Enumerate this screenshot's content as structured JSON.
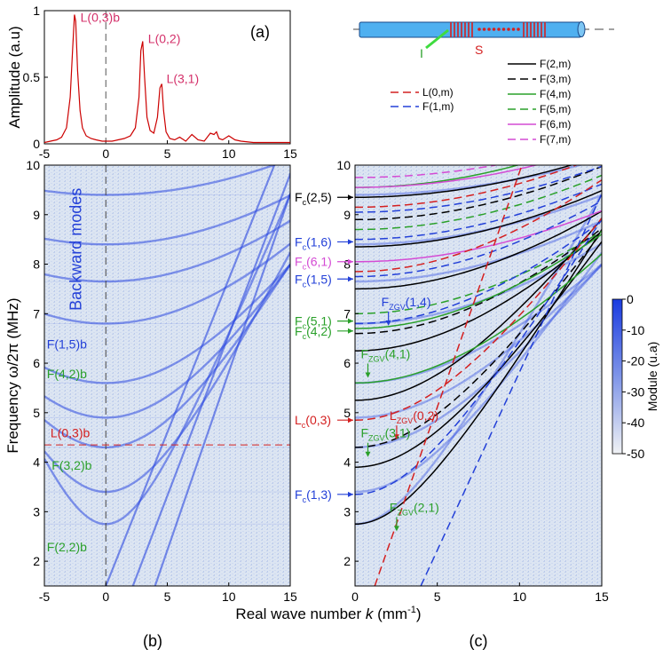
{
  "colors": {
    "red": "#d42020",
    "blue": "#2340d8",
    "green": "#2aa02a",
    "magenta": "#d44bd4",
    "black": "#000000",
    "cyan": "#4fb0f0",
    "peak": "#cc0000",
    "spectrum_bg": "#dde6f2",
    "spectrum_mode": "#2b48e0"
  },
  "chart_data": [
    {
      "panel": "a",
      "type": "line",
      "panel_letter": "(a)",
      "xlabel": "",
      "ylabel": "Amplitude (a.u)",
      "xlim": [
        -5,
        15
      ],
      "ylim": [
        0,
        1
      ],
      "xticks": [
        -5,
        0,
        5,
        10,
        15
      ],
      "yticks": [
        0,
        0.5,
        1
      ],
      "ytick_labels": [
        "0",
        "0.5",
        "1"
      ],
      "vline_x": 0,
      "series": [
        {
          "x": [
            -5,
            -4.5,
            -4,
            -3.6,
            -3.2,
            -2.9,
            -2.7,
            -2.55,
            -2.45,
            -2.3,
            -2.1,
            -1.9,
            -1.6,
            -1.2,
            -0.8,
            -0.3,
            0,
            0.5,
            1,
            1.5,
            2,
            2.4,
            2.7,
            2.85,
            3.0,
            3.15,
            3.35,
            3.6,
            3.9,
            4.2,
            4.4,
            4.55,
            4.7,
            4.9,
            5.2,
            5.6,
            6.0,
            6.5,
            7.0,
            7.5,
            8.0,
            8.5,
            8.8,
            9.0,
            9.2,
            9.5,
            10.0,
            10.5,
            11,
            12,
            13,
            14,
            15
          ],
          "y": [
            0.01,
            0.02,
            0.03,
            0.05,
            0.12,
            0.35,
            0.72,
            0.97,
            0.92,
            0.55,
            0.25,
            0.12,
            0.06,
            0.04,
            0.03,
            0.02,
            0.02,
            0.02,
            0.03,
            0.04,
            0.06,
            0.12,
            0.35,
            0.7,
            0.77,
            0.5,
            0.2,
            0.1,
            0.08,
            0.2,
            0.42,
            0.45,
            0.25,
            0.09,
            0.04,
            0.03,
            0.05,
            0.02,
            0.07,
            0.03,
            0.02,
            0.08,
            0.07,
            0.09,
            0.04,
            0.03,
            0.06,
            0.03,
            0.02,
            0.01,
            0.01,
            0.01,
            0.01
          ]
        }
      ],
      "annotations": [
        {
          "text": "L(0,3)b",
          "x": -2.5,
          "y": 0.97
        },
        {
          "text": "L(0,2)",
          "x": 3.0,
          "y": 0.77
        },
        {
          "text": "L(3,1)",
          "x": 4.5,
          "y": 0.47
        }
      ]
    },
    {
      "panel": "b",
      "type": "heatmap",
      "panel_letter": "(b)",
      "xlabel": "",
      "ylabel": "Frequency  ω/2π  (MHz)",
      "xlim": [
        -5,
        15
      ],
      "ylim": [
        1.5,
        10
      ],
      "xticks": [
        -5,
        0,
        5,
        10,
        15
      ],
      "yticks": [
        2,
        3,
        4,
        5,
        6,
        7,
        8,
        9,
        10
      ],
      "vline_x": 0,
      "hline_y": 4.35,
      "mode_curves": [
        {
          "k0": 0,
          "f0": 2.75,
          "a": 0.6
        },
        {
          "k0": 0,
          "f0": 3.4,
          "a": 0.5
        },
        {
          "k0": 0,
          "f0": 4.3,
          "a": 0.45
        },
        {
          "k0": 0,
          "f0": 4.9,
          "a": 0.42
        },
        {
          "k0": 0,
          "f0": 5.6,
          "a": 0.38
        },
        {
          "k0": 0,
          "f0": 6.8,
          "a": 0.33
        },
        {
          "k0": 0,
          "f0": 7.65,
          "a": 0.3
        },
        {
          "k0": 0,
          "f0": 8.4,
          "a": 0.28
        },
        {
          "k0": 0,
          "f0": 9.4,
          "a": 0.25
        }
      ],
      "straight_modes": [
        {
          "k_start": 0,
          "f_start": 1.5,
          "slope": 0.62
        },
        {
          "k_start": 2.2,
          "f_start": 1.5,
          "slope": 0.65
        },
        {
          "k_start": 4.0,
          "f_start": 1.5,
          "slope": 0.72
        }
      ],
      "annotations": [
        {
          "text": "Backward modes",
          "color": "blue",
          "x": -2.3,
          "y": 8.3,
          "rotate": -90
        },
        {
          "text": "F(1,5)b",
          "color": "blue",
          "x": -4.8,
          "y": 6.3
        },
        {
          "text": "F(4,2)b",
          "color": "green",
          "x": -4.8,
          "y": 5.7
        },
        {
          "text": "L(0,3)b",
          "color": "red",
          "x": -4.5,
          "y": 4.5
        },
        {
          "text": "F(3,2)b",
          "color": "green",
          "x": -4.4,
          "y": 3.85
        },
        {
          "text": "F(2,2)b",
          "color": "green",
          "x": -4.8,
          "y": 2.2
        }
      ]
    },
    {
      "panel": "c",
      "type": "line",
      "panel_letter": "(c)",
      "xlabel": "Real wave number k (mm⁻¹)",
      "xlabel_parts": [
        "Real wave number ",
        "k",
        " (mm",
        "-1",
        ")"
      ],
      "ylabel": "",
      "xlim": [
        0,
        15
      ],
      "ylim": [
        1.5,
        10
      ],
      "xticks": [
        0,
        5,
        10,
        15
      ],
      "yticks": [
        2,
        3,
        4,
        5,
        6,
        7,
        8,
        9,
        10
      ],
      "colorbar": {
        "label": "Module (u.a)",
        "min": -50,
        "max": 0,
        "ticks": [
          0,
          -10,
          -20,
          -30,
          -40,
          -50
        ]
      },
      "legend": [
        {
          "text": "L(0,m)",
          "color": "red",
          "dash": true
        },
        {
          "text": "F(1,m)",
          "color": "blue",
          "dash": true
        },
        {
          "text": "F(2,m)",
          "color": "black",
          "dash": false
        },
        {
          "text": "F(3,m)",
          "color": "black",
          "dash": true
        },
        {
          "text": "F(4,m)",
          "color": "green",
          "dash": false
        },
        {
          "text": "F(5,m)",
          "color": "green",
          "dash": true
        },
        {
          "text": "F(6,m)",
          "color": "magenta",
          "dash": false
        },
        {
          "text": "F(7,m)",
          "color": "magenta",
          "dash": true
        }
      ],
      "series": [
        {
          "name": "F(2,m)",
          "color": "black",
          "dash": false,
          "curves": [
            [
              0,
              2.75,
              0.55
            ],
            [
              0,
              3.9,
              0.5
            ],
            [
              0,
              5.25,
              0.48
            ],
            [
              0,
              6.25,
              0.4
            ],
            [
              0,
              7.5,
              0.34
            ],
            [
              0,
              8.35,
              0.3
            ],
            [
              0,
              9.35,
              0.27
            ]
          ]
        },
        {
          "name": "F(3,m)",
          "color": "black",
          "dash": true,
          "curves": [
            [
              0,
              4.3,
              0.5
            ],
            [
              0,
              6.6,
              0.38
            ],
            [
              0,
              8.9,
              0.3
            ]
          ]
        },
        {
          "name": "F(4,m)",
          "color": "green",
          "dash": false,
          "curves": [
            [
              0,
              5.6,
              0.4
            ],
            [
              0,
              6.7,
              0.36
            ],
            [
              0,
              9.55,
              0.3
            ]
          ]
        },
        {
          "name": "F(5,m)",
          "color": "green",
          "dash": true,
          "curves": [
            [
              0,
              7.0,
              0.34
            ],
            [
              0,
              8.7,
              0.3
            ]
          ]
        },
        {
          "name": "F(6,m)",
          "color": "magenta",
          "dash": false,
          "curves": [
            [
              0,
              8.05,
              0.28
            ],
            [
              0,
              9.55,
              0.27
            ]
          ]
        },
        {
          "name": "F(7,m)",
          "color": "magenta",
          "dash": true,
          "curves": [
            [
              0,
              9.75,
              0.26
            ]
          ]
        },
        {
          "name": "F(1,m)",
          "color": "blue",
          "dash": true,
          "curves": [
            [
              0,
              3.35,
              0.55
            ],
            [
              0,
              6.8,
              0.38
            ],
            [
              0,
              7.75,
              0.34
            ],
            [
              0,
              8.5,
              0.3
            ],
            [
              0,
              9.05,
              0.28
            ]
          ]
        },
        {
          "name": "L(0,m)",
          "color": "red",
          "dash": true,
          "curves": [
            [
              0,
              4.85,
              0.5
            ],
            [
              0,
              7.85,
              0.38
            ],
            [
              0,
              9.15,
              0.3
            ]
          ]
        }
      ],
      "straight_modes": [
        {
          "name": "L(0,m)",
          "color": "red",
          "dash": true,
          "k_start": 1.2,
          "f_start": 1.5,
          "slope": 0.95
        },
        {
          "name": "F(1,m)",
          "color": "blue",
          "dash": true,
          "k_start": 4.0,
          "f_start": 1.5,
          "slope": 0.72
        }
      ],
      "annotations": [
        {
          "main": "F",
          "sub": "c",
          "rest": "(2,5)",
          "color": "black",
          "f": 9.35
        },
        {
          "main": "F",
          "sub": "c",
          "rest": "(1,6)",
          "color": "blue",
          "f": 8.45
        },
        {
          "main": "F",
          "sub": "c",
          "rest": "(6,1)",
          "color": "magenta",
          "f": 8.05
        },
        {
          "main": "F",
          "sub": "c",
          "rest": "(1,5)",
          "color": "blue",
          "f": 7.7
        },
        {
          "main": "F",
          "sub": "c",
          "rest": "(5,1)",
          "color": "green",
          "f": 6.85
        },
        {
          "main": "F",
          "sub": "c",
          "rest": "(4,2)",
          "color": "green",
          "f": 6.65
        },
        {
          "main": "L",
          "sub": "c",
          "rest": "(0,3)",
          "color": "red",
          "f": 4.85
        },
        {
          "main": "F",
          "sub": "c",
          "rest": "(1,3)",
          "color": "blue",
          "f": 3.35
        }
      ],
      "zgv_labels": [
        {
          "main": "F",
          "sub": "ZGV",
          "rest": "(1,4)",
          "color": "blue",
          "k": 1.6,
          "f": 7.15
        },
        {
          "main": "F",
          "sub": "ZGV",
          "rest": "(4,1)",
          "color": "green",
          "k": 0.35,
          "f": 6.1
        },
        {
          "main": "L",
          "sub": "ZGV",
          "rest": "(0,2)",
          "color": "red",
          "k": 2.1,
          "f": 4.85
        },
        {
          "main": "F",
          "sub": "ZGV",
          "rest": "(3,1)",
          "color": "green",
          "k": 0.35,
          "f": 4.5
        },
        {
          "main": "F",
          "sub": "ZGV",
          "rest": "(2,1)",
          "color": "green",
          "k": 2.1,
          "f": 3.0
        }
      ]
    }
  ],
  "inset": {
    "label_I": "I",
    "label_S": "S"
  }
}
